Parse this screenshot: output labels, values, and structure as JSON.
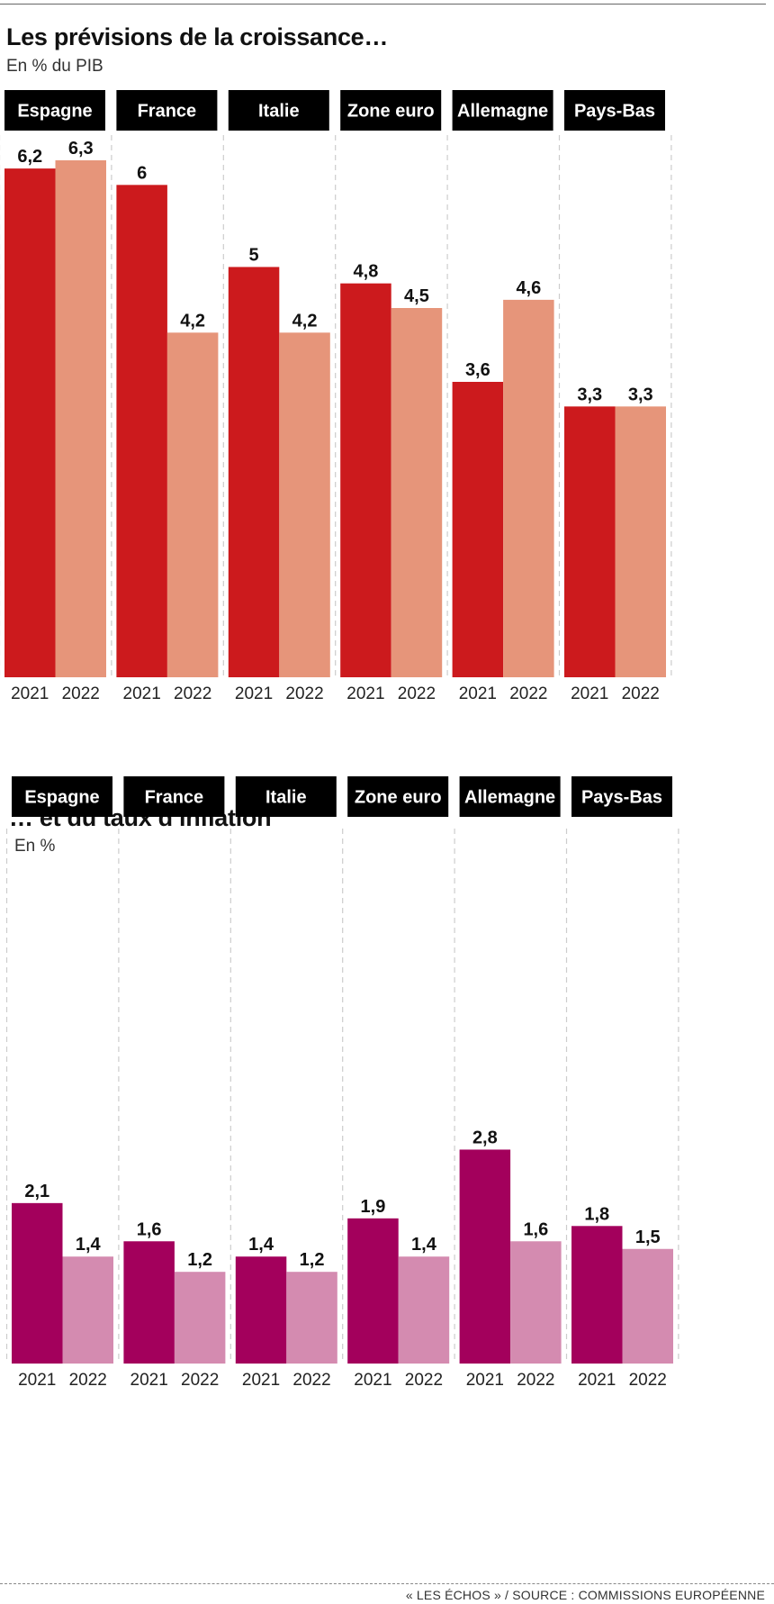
{
  "footer": {
    "source": "« LES ÉCHOS » / SOURCE : COMMISSIONS EUROPÉENNE"
  },
  "colors": {
    "growth_2021": "#cc1a1d",
    "growth_2022": "#e6957a",
    "inflation_2021": "#a3005c",
    "inflation_2022": "#d48bb0",
    "header_bg": "#000000",
    "header_text": "#ffffff",
    "grid": "#cccccc"
  },
  "chart_data": [
    {
      "type": "bar",
      "title": "Les prévisions de la croissance…",
      "subtitle": "En % du PIB",
      "categories": [
        "Espagne",
        "France",
        "Italie",
        "Zone euro",
        "Allemagne",
        "Pays-Bas"
      ],
      "x_labels": [
        "2021",
        "2022"
      ],
      "series": [
        {
          "name": "2021",
          "values": [
            6.2,
            6.0,
            5.0,
            4.8,
            3.6,
            3.3
          ],
          "labels": [
            "6,2",
            "6",
            "5",
            "4,8",
            "3,6",
            "3,3"
          ]
        },
        {
          "name": "2022",
          "values": [
            6.3,
            4.2,
            4.2,
            4.5,
            4.6,
            3.3
          ],
          "labels": [
            "6,3",
            "4,2",
            "4,2",
            "4,5",
            "4,6",
            "3,3"
          ]
        }
      ],
      "ylim": [
        0,
        6.3
      ]
    },
    {
      "type": "bar",
      "title": "… et du taux d’inflation",
      "subtitle": "En %",
      "categories": [
        "Espagne",
        "France",
        "Italie",
        "Zone euro",
        "Allemagne",
        "Pays-Bas"
      ],
      "x_labels": [
        "2021",
        "2022"
      ],
      "series": [
        {
          "name": "2021",
          "values": [
            2.1,
            1.6,
            1.4,
            1.9,
            2.8,
            1.8
          ],
          "labels": [
            "2,1",
            "1,6",
            "1,4",
            "1,9",
            "2,8",
            "1,8"
          ]
        },
        {
          "name": "2022",
          "values": [
            1.4,
            1.2,
            1.2,
            1.4,
            1.6,
            1.5
          ],
          "labels": [
            "1,4",
            "1,2",
            "1,2",
            "1,4",
            "1,6",
            "1,5"
          ]
        }
      ],
      "ylim": [
        0,
        6.0
      ]
    }
  ]
}
